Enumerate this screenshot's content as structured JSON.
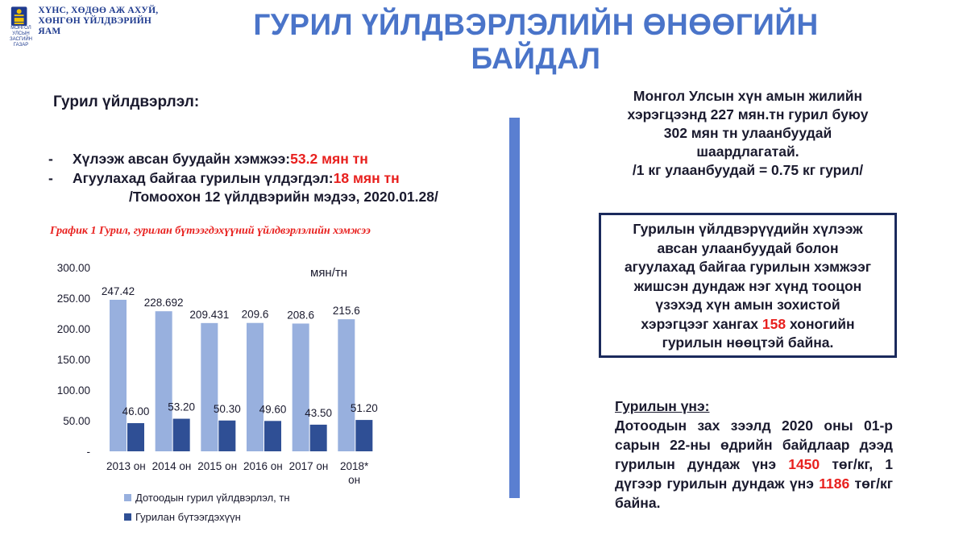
{
  "header": {
    "logo_small": "МОНГОЛ УЛСЫН ЗАСГИЙН ГАЗАР",
    "logo_line1": "ХҮНС, ХӨДӨӨ АЖ АХУЙ,",
    "logo_line2": "ХӨНГӨН ҮЙЛДВЭРИЙН ЯАМ",
    "title": "ГУРИЛ ҮЙЛДВЭРЛЭЛИЙН ӨНӨӨГИЙН БАЙДАЛ"
  },
  "left": {
    "heading": "Гурил  үйлдвэрлэл:",
    "bullet1_prefix": "Хүлээж авсан буудайн хэмжээ: ",
    "bullet1_value": "53.2 мян тн",
    "bullet2_prefix": "Агуулахад байгаа гурилын үлдэгдэл: ",
    "bullet2_value": "18 мян тн",
    "source": "/Томоохон 12 үйлдвэрийн мэдээ, 2020.01.28/",
    "chart_title": "График 1 Гурил,  гурилан бүтээгдэхүүний үйлдвэрлэлийн хэмжээ",
    "unit": "мян/тн"
  },
  "chart_data": {
    "type": "bar",
    "categories": [
      "2013 он",
      "2014 он",
      "2015 он",
      "2016 он",
      "2017 он",
      "2018* он"
    ],
    "series": [
      {
        "name": "Дотоодын гурил   үйлдвэрлэл, тн",
        "values": [
          247.42,
          228.692,
          209.431,
          209.6,
          208.6,
          215.6
        ],
        "labels": [
          "247.42",
          "228.692",
          "209.431",
          "209.6",
          "208.6",
          "215.6"
        ],
        "color": "#98b0de"
      },
      {
        "name": "Гурилан бүтээгдэхүүн",
        "values": [
          46.0,
          53.2,
          50.3,
          49.6,
          43.5,
          51.2
        ],
        "labels": [
          "46.00",
          "53.20",
          "50.30",
          "49.60",
          "43.50",
          "51.20"
        ],
        "color": "#2f4f95"
      }
    ],
    "ylim": [
      0,
      300
    ],
    "yticks": [
      0,
      50,
      100,
      150,
      200,
      250,
      300
    ],
    "ytick_labels": [
      "-",
      "50.00",
      "100.00",
      "150.00",
      "200.00",
      "250.00",
      "300.00"
    ],
    "legend": "bottom"
  },
  "right": {
    "top_line1": "Монгол Улсын хүн амын жилийн",
    "top_line2": "хэрэгцээнд 227 мян.тн гурил буюу",
    "top_line3": "302 мян тн улаанбуудай",
    "top_line4": "шаардлагатай.",
    "top_line5": "/1 кг улаанбуудай = 0.75 кг гурил/",
    "box_line1": "Гурилын үйлдвэрүүдийн хүлээж",
    "box_line2": "авсан улаанбуудай болон",
    "box_line3": "агуулахад байгаа гурилын хэмжээг",
    "box_line4": "жишсэн дундаж нэг хүнд тооцон",
    "box_line5": "үзэхэд  хүн амын зохистой",
    "box_line6_prefix": "хэрэгцээг хангах ",
    "box_line6_value": "158",
    "box_line6_suffix": " хоногийн",
    "box_line7": "гурилын нөөцтэй байна.",
    "price_heading": "Гурилын үнэ:",
    "price_text1": "Дотоодын зах зээлд 2020 оны 01-р сарын 22-ны өдрийн байдлаар дээд гурилын дундаж үнэ ",
    "price_value1": "1450",
    "price_text2": " төг/кг, 1 дүгээр гурилын дундаж үнэ ",
    "price_value2": "1186",
    "price_text3": "  төг/кг байна."
  },
  "colors": {
    "title": "#4a74c9",
    "accent_red": "#e8201e",
    "divider": "#5a7fd1",
    "box_border": "#1b2a5c"
  }
}
